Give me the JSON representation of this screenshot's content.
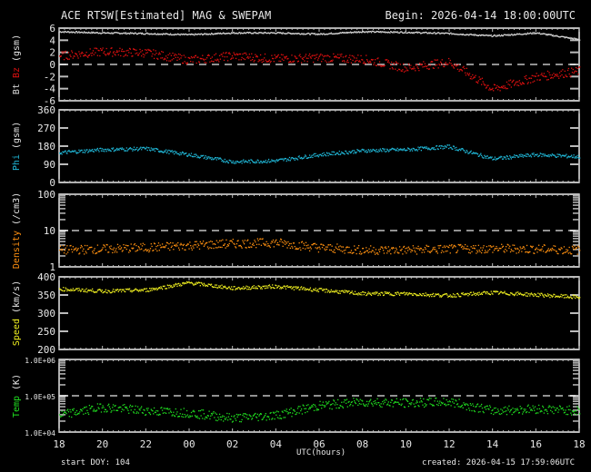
{
  "header": {
    "title": "ACE RTSW[Estimated] MAG & SWEPAM",
    "begin": "Begin: 2026-04-14 18:00:00UTC"
  },
  "footer": {
    "start_doy": "start DOY: 104",
    "created": "created: 2026-04-15  17:59:06UTC",
    "xlabel": "UTC(hours)"
  },
  "chart_data": [
    {
      "type": "scatter",
      "title": "Bt / Bz (gsm)",
      "ylabel": "Bt  Bz (gsm)",
      "ylim": [
        -6,
        6
      ],
      "yticks": [
        "6",
        "4",
        "2",
        "0",
        "-2",
        "-4",
        "-6"
      ],
      "reference_line": 0,
      "x": [
        "18",
        "20",
        "22",
        "00",
        "02",
        "04",
        "06",
        "08",
        "10",
        "12",
        "14",
        "16",
        "18"
      ],
      "series": [
        {
          "name": "Bt",
          "color": "#d8d8d8",
          "values": [
            5.5,
            5.3,
            5.2,
            5.0,
            5.3,
            5.3,
            5.1,
            5.5,
            5.4,
            5.2,
            4.8,
            5.3,
            4.2
          ]
        },
        {
          "name": "Bz",
          "color": "#e01010",
          "values": [
            1.5,
            2.2,
            2.0,
            0.8,
            1.5,
            1.0,
            1.2,
            1.0,
            -0.5,
            0.5,
            -4.0,
            -2.0,
            -1.0
          ]
        }
      ]
    },
    {
      "type": "scatter",
      "title": "Phi (gsm)",
      "ylabel": "Phi (gsm)",
      "ylim": [
        0,
        360
      ],
      "yticks": [
        "360",
        "270",
        "180",
        "90",
        "0"
      ],
      "x": [
        "18",
        "20",
        "22",
        "00",
        "02",
        "04",
        "06",
        "08",
        "10",
        "12",
        "14",
        "16",
        "18"
      ],
      "series": [
        {
          "name": "Phi",
          "color": "#20b8d8",
          "values": [
            150,
            165,
            170,
            140,
            105,
            110,
            140,
            160,
            165,
            180,
            120,
            140,
            130
          ]
        }
      ]
    },
    {
      "type": "scatter",
      "title": "Density (/cm3)",
      "ylabel": "Density (/cm3)",
      "yscale": "log",
      "ylim": [
        1,
        100
      ],
      "yticks": [
        "100",
        "10",
        "1"
      ],
      "reference_line": 10,
      "x": [
        "18",
        "20",
        "22",
        "00",
        "02",
        "04",
        "06",
        "08",
        "10",
        "12",
        "14",
        "16",
        "18"
      ],
      "series": [
        {
          "name": "Density",
          "color": "#ff9010",
          "values": [
            3.0,
            3.2,
            3.5,
            4.0,
            4.5,
            4.8,
            3.5,
            3.0,
            3.0,
            3.2,
            3.3,
            3.2,
            3.0
          ]
        }
      ]
    },
    {
      "type": "scatter",
      "title": "Speed (km/s)",
      "ylabel": "Speed (km/s)",
      "ylim": [
        200,
        400
      ],
      "yticks": [
        "400",
        "350",
        "300",
        "250",
        "200"
      ],
      "x": [
        "18",
        "20",
        "22",
        "00",
        "02",
        "04",
        "06",
        "08",
        "10",
        "12",
        "14",
        "16",
        "18"
      ],
      "series": [
        {
          "name": "Speed",
          "color": "#f0f020",
          "values": [
            368,
            362,
            365,
            385,
            370,
            375,
            365,
            355,
            355,
            350,
            358,
            352,
            345
          ]
        }
      ]
    },
    {
      "type": "scatter",
      "title": "Temp (K)",
      "ylabel": "Temp (K)",
      "yscale": "log",
      "ylim": [
        10000,
        1000000
      ],
      "yticks": [
        "1.0E+06",
        "1.0E+05",
        "1.0E+04"
      ],
      "reference_line": 100000,
      "x": [
        "18",
        "20",
        "22",
        "00",
        "02",
        "04",
        "06",
        "08",
        "10",
        "12",
        "14",
        "16",
        "18"
      ],
      "series": [
        {
          "name": "Temp",
          "color": "#20e020",
          "values": [
            30000,
            50000,
            40000,
            35000,
            25000,
            30000,
            55000,
            70000,
            65000,
            70000,
            40000,
            45000,
            40000
          ]
        }
      ]
    }
  ],
  "colors": {
    "background": "#000000",
    "axes": "#e8e8e8",
    "Bt": "#d8d8d8",
    "Bz": "#e01010",
    "Phi": "#20b8d8",
    "Density": "#ff9010",
    "Speed": "#f0f020",
    "Temp": "#20e020"
  }
}
